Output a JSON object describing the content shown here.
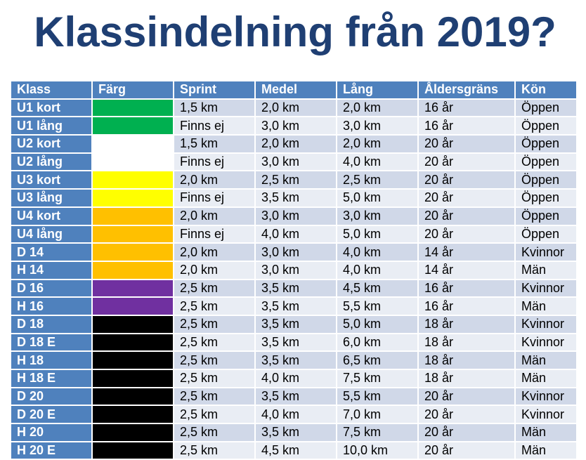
{
  "title": "Klassindelning från 2019?",
  "table": {
    "headers": [
      "Klass",
      "Färg",
      "Sprint",
      "Medel",
      "Lång",
      "Åldersgräns",
      "Kön"
    ],
    "rows": [
      {
        "klass": "U1 kort",
        "color": "#00b050",
        "sprint": "1,5 km",
        "medel": "2,0 km",
        "lang": "2,0 km",
        "alder": "16 år",
        "kon": "Öppen"
      },
      {
        "klass": "U1 lång",
        "color": "#00b050",
        "sprint": "Finns ej",
        "medel": "3,0 km",
        "lang": "3,0 km",
        "alder": "16 år",
        "kon": "Öppen"
      },
      {
        "klass": "U2 kort",
        "color": "#ffffff",
        "sprint": "1,5 km",
        "medel": "2,0 km",
        "lang": "2,0 km",
        "alder": "20 år",
        "kon": "Öppen"
      },
      {
        "klass": "U2 lång",
        "color": "#ffffff",
        "sprint": "Finns ej",
        "medel": "3,0 km",
        "lang": "4,0 km",
        "alder": "20 år",
        "kon": "Öppen"
      },
      {
        "klass": "U3 kort",
        "color": "#ffff00",
        "sprint": "2,0 km",
        "medel": "2,5 km",
        "lang": "2,5 km",
        "alder": "20 år",
        "kon": "Öppen"
      },
      {
        "klass": "U3 lång",
        "color": "#ffff00",
        "sprint": "Finns ej",
        "medel": "3,5 km",
        "lang": "5,0 km",
        "alder": "20 år",
        "kon": "Öppen"
      },
      {
        "klass": "U4 kort",
        "color": "#ffc000",
        "sprint": "2,0 km",
        "medel": "3,0 km",
        "lang": "3,0 km",
        "alder": "20 år",
        "kon": "Öppen"
      },
      {
        "klass": "U4 lång",
        "color": "#ffc000",
        "sprint": "Finns ej",
        "medel": "4,0 km",
        "lang": "5,0 km",
        "alder": "20 år",
        "kon": "Öppen"
      },
      {
        "klass": "D 14",
        "color": "#ffc000",
        "sprint": "2,0 km",
        "medel": "3,0 km",
        "lang": "4,0 km",
        "alder": "14 år",
        "kon": "Kvinnor"
      },
      {
        "klass": "H 14",
        "color": "#ffc000",
        "sprint": "2,0 km",
        "medel": "3,0 km",
        "lang": "4,0 km",
        "alder": "14 år",
        "kon": "Män"
      },
      {
        "klass": "D 16",
        "color": "#7030a0",
        "sprint": "2,5 km",
        "medel": "3,5 km",
        "lang": "4,5 km",
        "alder": "16 år",
        "kon": "Kvinnor"
      },
      {
        "klass": "H 16",
        "color": "#7030a0",
        "sprint": "2,5 km",
        "medel": "3,5 km",
        "lang": "5,5 km",
        "alder": "16 år",
        "kon": "Män"
      },
      {
        "klass": "D 18",
        "color": "#000000",
        "sprint": "2,5 km",
        "medel": "3,5 km",
        "lang": "5,0 km",
        "alder": "18 år",
        "kon": "Kvinnor"
      },
      {
        "klass": "D 18 E",
        "color": "#000000",
        "sprint": "2,5 km",
        "medel": "3,5 km",
        "lang": "6,0 km",
        "alder": "18 år",
        "kon": "Kvinnor"
      },
      {
        "klass": "H 18",
        "color": "#000000",
        "sprint": "2,5 km",
        "medel": "3,5 km",
        "lang": "6,5 km",
        "alder": "18 år",
        "kon": "Män"
      },
      {
        "klass": "H 18 E",
        "color": "#000000",
        "sprint": "2,5 km",
        "medel": "4,0 km",
        "lang": "7,5 km",
        "alder": "18 år",
        "kon": "Män"
      },
      {
        "klass": "D 20",
        "color": "#000000",
        "sprint": "2,5 km",
        "medel": "3,5 km",
        "lang": "5,5 km",
        "alder": "20 år",
        "kon": "Kvinnor"
      },
      {
        "klass": "D 20 E",
        "color": "#000000",
        "sprint": "2,5 km",
        "medel": "4,0 km",
        "lang": "7,0 km",
        "alder": "20 år",
        "kon": "Kvinnor"
      },
      {
        "klass": "H 20",
        "color": "#000000",
        "sprint": "2,5 km",
        "medel": "3,5 km",
        "lang": "7,5 km",
        "alder": "20 år",
        "kon": "Män"
      },
      {
        "klass": "H 20 E",
        "color": "#000000",
        "sprint": "2,5 km",
        "medel": "4,5 km",
        "lang": "10,0 km",
        "alder": "20 år",
        "kon": "Män"
      }
    ]
  }
}
